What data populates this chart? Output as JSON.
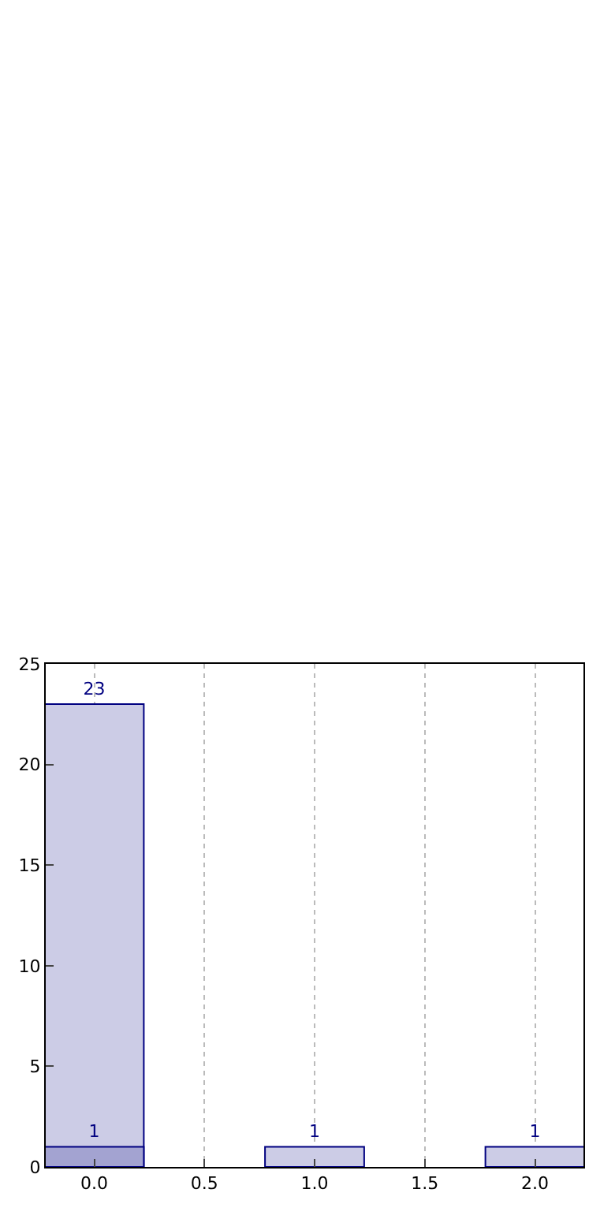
{
  "chart_data": {
    "type": "bar",
    "series": [
      {
        "x": [
          0,
          1,
          2
        ],
        "values": [
          23,
          1,
          1
        ],
        "color": "#cccce6"
      },
      {
        "x": [
          0
        ],
        "values": [
          1
        ],
        "color": "#a3a3d1"
      }
    ],
    "data_labels": true,
    "xlim": [
      -0.22,
      2.22
    ],
    "ylim": [
      0,
      25
    ],
    "xticks": [
      {
        "value": 0,
        "label": "0.0"
      },
      0.5,
      {
        "value": 1,
        "label": "1.0"
      },
      1.5,
      {
        "value": 2,
        "label": "2.0"
      }
    ],
    "yticks": [
      0,
      5,
      10,
      15,
      20,
      25
    ],
    "grid": "x"
  }
}
